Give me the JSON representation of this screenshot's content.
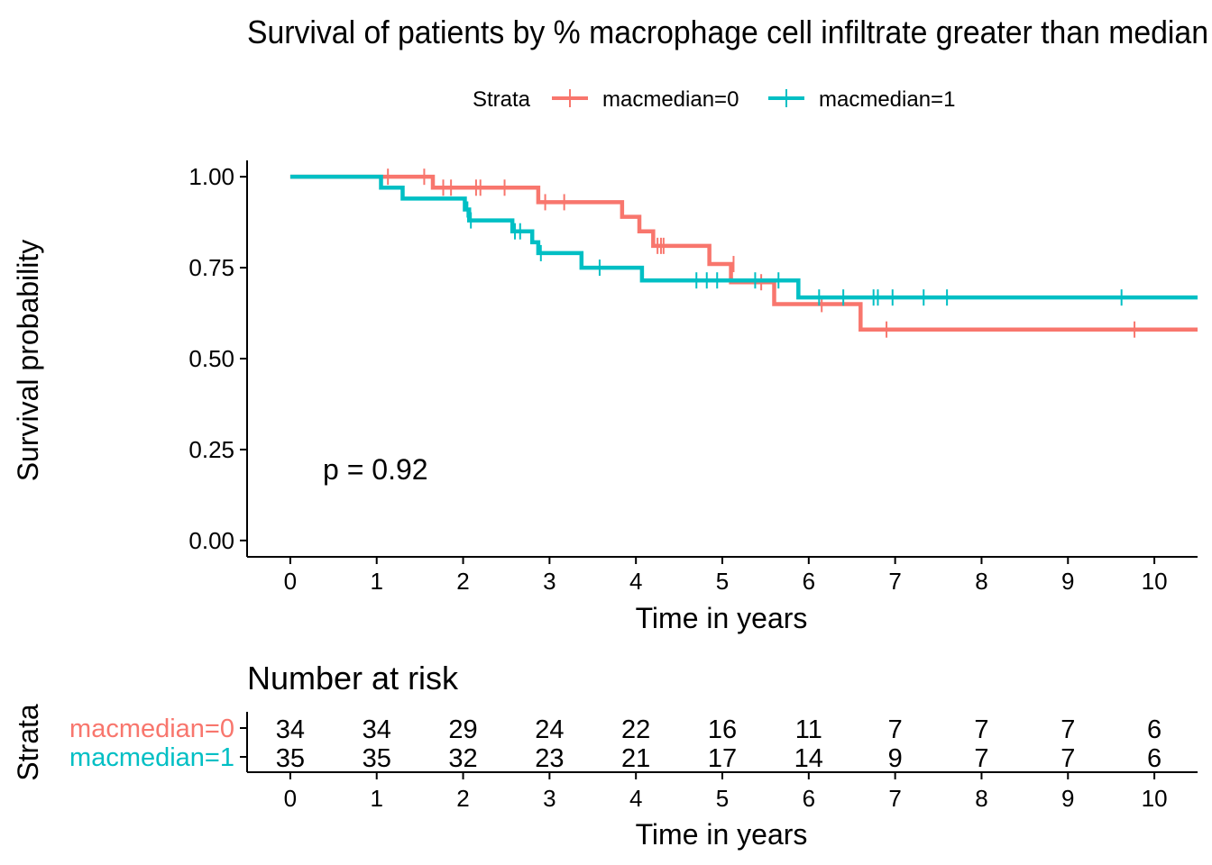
{
  "chart_data": {
    "type": "line",
    "title": "Survival of patients by % macrophage cell infiltrate greater than median",
    "xlabel": "Time in years",
    "ylabel": "Survival probability",
    "xlim": [
      -0.5,
      10.5
    ],
    "ylim": [
      -0.045,
      1.045
    ],
    "x_ticks": [
      "0",
      "1",
      "2",
      "3",
      "4",
      "5",
      "6",
      "7",
      "8",
      "9",
      "10"
    ],
    "y_ticks": [
      "0.00",
      "0.25",
      "0.50",
      "0.75",
      "1.00"
    ],
    "grid": false,
    "legend_title": "Strata",
    "legend_position": "top",
    "annotation": "p = 0.92",
    "series": [
      {
        "name": "macmedian=0",
        "color": "#F8766D",
        "steps": [
          [
            0,
            1.0
          ],
          [
            1.65,
            0.97
          ],
          [
            2.87,
            0.93
          ],
          [
            3.84,
            0.89
          ],
          [
            4.04,
            0.85
          ],
          [
            4.2,
            0.81
          ],
          [
            4.85,
            0.76
          ],
          [
            5.1,
            0.71
          ],
          [
            5.6,
            0.65
          ],
          [
            6.6,
            0.58
          ],
          [
            10.5,
            0.58
          ]
        ],
        "censored": [
          [
            1.13,
            1.0
          ],
          [
            1.55,
            1.0
          ],
          [
            1.77,
            0.97
          ],
          [
            1.86,
            0.97
          ],
          [
            2.15,
            0.97
          ],
          [
            2.2,
            0.97
          ],
          [
            2.48,
            0.97
          ],
          [
            2.95,
            0.93
          ],
          [
            3.17,
            0.93
          ],
          [
            4.25,
            0.81
          ],
          [
            4.29,
            0.81
          ],
          [
            4.32,
            0.81
          ],
          [
            5.13,
            0.76
          ],
          [
            5.45,
            0.71
          ],
          [
            6.15,
            0.65
          ],
          [
            6.9,
            0.58
          ],
          [
            9.77,
            0.58
          ]
        ]
      },
      {
        "name": "macmedian=1",
        "color": "#00BFC4",
        "steps": [
          [
            0,
            1.0
          ],
          [
            1.05,
            0.97
          ],
          [
            1.3,
            0.94
          ],
          [
            2.02,
            0.91
          ],
          [
            2.07,
            0.88
          ],
          [
            2.57,
            0.85
          ],
          [
            2.8,
            0.82
          ],
          [
            2.87,
            0.79
          ],
          [
            3.37,
            0.75
          ],
          [
            4.07,
            0.715
          ],
          [
            5.88,
            0.668
          ],
          [
            10.5,
            0.668
          ]
        ],
        "censored": [
          [
            2.05,
            0.91
          ],
          [
            2.09,
            0.88
          ],
          [
            2.6,
            0.85
          ],
          [
            2.66,
            0.85
          ],
          [
            2.9,
            0.79
          ],
          [
            3.58,
            0.75
          ],
          [
            4.7,
            0.715
          ],
          [
            4.82,
            0.715
          ],
          [
            4.94,
            0.715
          ],
          [
            5.38,
            0.715
          ],
          [
            5.65,
            0.715
          ],
          [
            6.12,
            0.668
          ],
          [
            6.4,
            0.668
          ],
          [
            6.75,
            0.668
          ],
          [
            6.8,
            0.668
          ],
          [
            6.97,
            0.668
          ],
          [
            7.33,
            0.668
          ],
          [
            7.6,
            0.668
          ],
          [
            9.62,
            0.668
          ]
        ]
      }
    ],
    "risk_table": {
      "title": "Number at risk",
      "ylabel": "Strata",
      "xlabel": "Time in years",
      "times": [
        0,
        1,
        2,
        3,
        4,
        5,
        6,
        7,
        8,
        9,
        10
      ],
      "rows": [
        {
          "name": "macmedian=0",
          "color": "#F8766D",
          "values": [
            34,
            34,
            29,
            24,
            22,
            16,
            11,
            7,
            7,
            7,
            6
          ]
        },
        {
          "name": "macmedian=1",
          "color": "#00BFC4",
          "values": [
            35,
            35,
            32,
            23,
            21,
            17,
            14,
            9,
            7,
            7,
            6
          ]
        }
      ]
    }
  }
}
